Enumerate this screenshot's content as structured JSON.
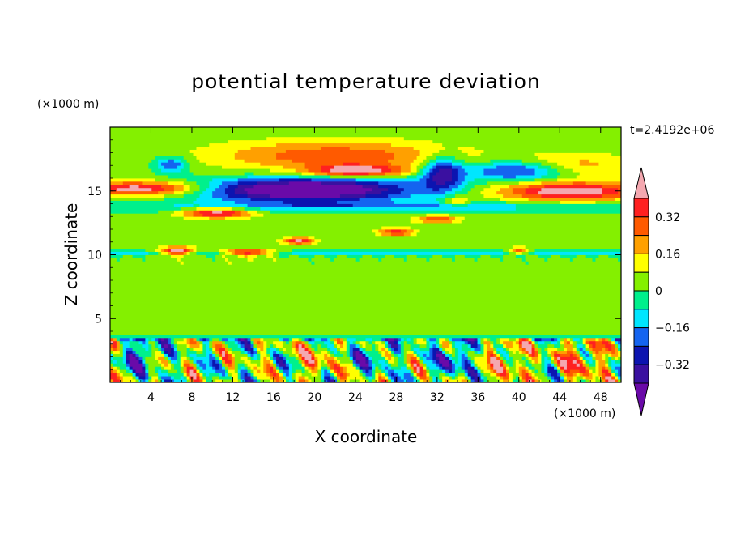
{
  "chart_data": {
    "type": "heatmap",
    "title": "potential temperature deviation",
    "time_label": "t=2.4192e+06",
    "xlabel": "X coordinate",
    "ylabel": "Z coordinate",
    "x_unit": "(×1000 m)",
    "z_unit": "(×1000 m)",
    "xlim": [
      0,
      50
    ],
    "ylim": [
      0,
      20
    ],
    "x_ticks": [
      "4",
      "8",
      "12",
      "16",
      "20",
      "24",
      "28",
      "32",
      "36",
      "40",
      "44",
      "48"
    ],
    "y_ticks": [
      "5",
      "10",
      "15"
    ],
    "colorbar": {
      "levels": [
        -0.48,
        -0.4,
        -0.32,
        -0.24,
        -0.16,
        -0.08,
        0,
        0.08,
        0.16,
        0.24,
        0.32,
        0.4
      ],
      "colors": [
        "#6a0aa8",
        "#3a10a0",
        "#0c14b0",
        "#1464f0",
        "#00e6ff",
        "#00f08c",
        "#84f000",
        "#ffff00",
        "#ffa000",
        "#ff5a00",
        "#ff2020",
        "#f4a8b0"
      ],
      "tick_labels": [
        "0.32",
        "0.16",
        "0",
        "−0.16",
        "−0.32"
      ],
      "extend": "both"
    },
    "field_regions": [
      {
        "name": "upper-warm-band-left",
        "x": [
          0,
          9
        ],
        "z": [
          14.7,
          15.7
        ],
        "value": 0.4
      },
      {
        "name": "upper-cold-core",
        "x": [
          8,
          30
        ],
        "z": [
          14,
          16
        ],
        "value": -0.48
      },
      {
        "name": "upper-warm-band-right",
        "x": [
          38,
          50
        ],
        "z": [
          14.5,
          15.8
        ],
        "value": 0.4
      },
      {
        "name": "warm-lens-top",
        "x": [
          20,
          28
        ],
        "z": [
          16.2,
          17
        ],
        "value": 0.4
      },
      {
        "name": "warm-lens-lower",
        "x": [
          7,
          15
        ],
        "z": [
          12.8,
          13.8
        ],
        "value": 0.4
      },
      {
        "name": "cold-spot-upper-right",
        "x": [
          30,
          40
        ],
        "z": [
          16,
          17.5
        ],
        "value": -0.32
      },
      {
        "name": "low-level-convection",
        "x": [
          0,
          50
        ],
        "z": [
          0,
          3.5
        ],
        "value": 0.24
      },
      {
        "name": "mid-level-band",
        "x": [
          0,
          50
        ],
        "z": [
          4,
          10
        ],
        "value": 0
      }
    ]
  }
}
